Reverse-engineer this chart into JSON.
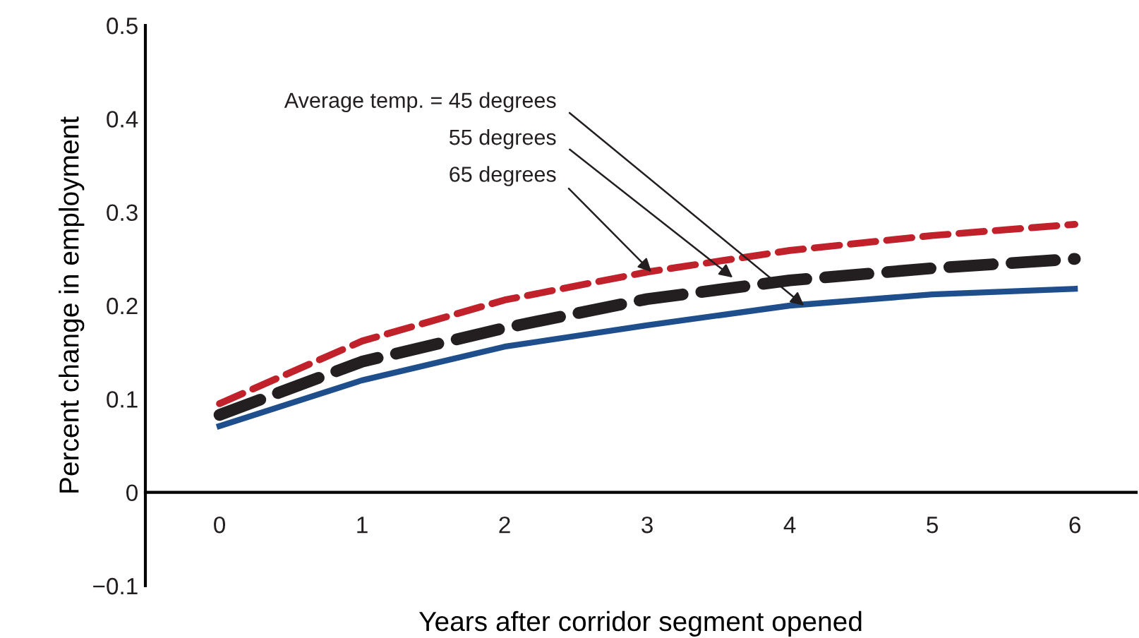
{
  "chart_data": {
    "type": "line",
    "xlabel": "Years after corridor segment opened",
    "ylabel": "Percent change in employment",
    "x": [
      0,
      1,
      2,
      3,
      4,
      5,
      6
    ],
    "xlim": [
      -0.52,
      6.43
    ],
    "xticks": [
      0,
      1,
      2,
      3,
      4,
      5,
      6
    ],
    "ylim": [
      -0.1,
      0.5
    ],
    "yticks": [
      {
        "value": -0.1,
        "label": "−0.1"
      },
      {
        "value": 0,
        "label": "0"
      },
      0.1,
      0.2,
      0.3,
      0.4,
      0.5
    ],
    "series": [
      {
        "color": "#1f4e8c",
        "line_style": "solid",
        "values": [
          0.071,
          0.12,
          0.156,
          0.179,
          0.2,
          0.212,
          0.218
        ]
      },
      {
        "color": "#231f20",
        "line_style": "dashed",
        "values": [
          0.083,
          0.14,
          0.176,
          0.207,
          0.227,
          0.24,
          0.25
        ]
      },
      {
        "color": "#c0212b",
        "line_style": "dashed",
        "values": [
          0.095,
          0.162,
          0.206,
          0.236,
          0.259,
          0.275,
          0.287
        ]
      }
    ],
    "annotations": [
      {
        "text": "Average temp. = 45 degrees",
        "x": 4.1,
        "y": 0.2
      },
      {
        "text": "55 degrees",
        "x": 3.6,
        "y": 0.23
      },
      {
        "text": "65 degrees",
        "x": 3.03,
        "y": 0.236
      }
    ],
    "grid": false,
    "legend": false
  }
}
